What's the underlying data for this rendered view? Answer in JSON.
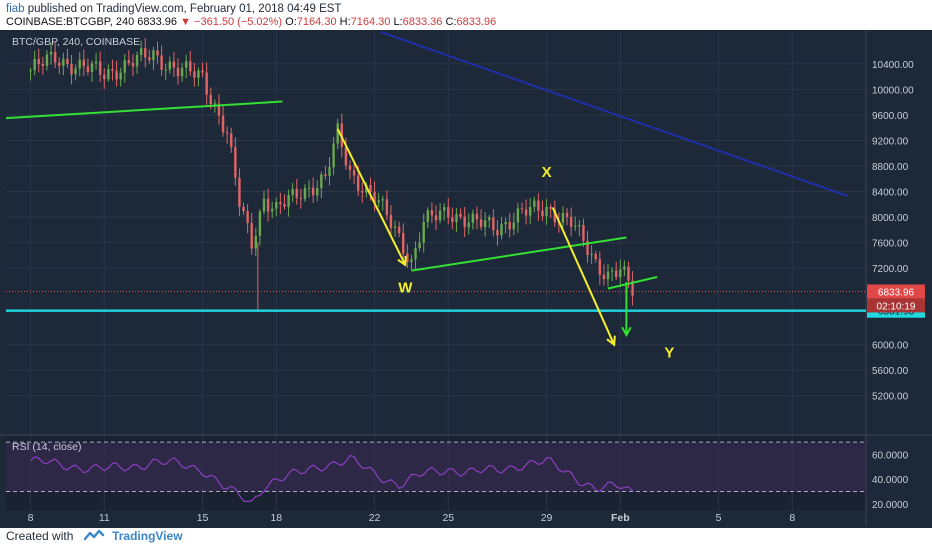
{
  "header": {
    "user": "fiab",
    "published_text": "published on TradingView.com, February 01, 2018 04:49 EST",
    "symbol": "COINBASE:BTCGBP, 240",
    "last": "6833.96",
    "change": "−361.50 (−5.02%)",
    "open_label": "O:",
    "open": "7164.30",
    "high_label": "H:",
    "high": "7164.30",
    "low_label": "L:",
    "low": "6833.36",
    "close_label": "C:",
    "close": "6833.96"
  },
  "footer": {
    "created_with": "Created with",
    "brand": "TradingView"
  },
  "colors": {
    "panel_bg": "#1d2838",
    "grid": "#2b3647",
    "up": "#6aa84f",
    "down": "#e06666",
    "trend_green": "#33e033",
    "trend_yellow": "#f5ee2a",
    "trend_blue": "#1f2fa8",
    "support_cyan": "#20d8e0",
    "price_badge": "#e04848",
    "rsi_line": "#8a3fc0",
    "rsi_band": "#3a2d55",
    "text": "#c8ced8"
  },
  "chart_data": {
    "type": "candlestick",
    "title": "BTC/GBP, 240, COINBASE",
    "x_tick_labels": [
      "8",
      "11",
      "15",
      "18",
      "22",
      "25",
      "29",
      "Feb",
      "5",
      "8"
    ],
    "x_ticks": [
      "2018-01-08",
      "2018-01-11",
      "2018-01-15",
      "2018-01-18",
      "2018-01-22",
      "2018-01-25",
      "2018-01-29",
      "2018-02-01",
      "2018-02-05",
      "2018-02-08"
    ],
    "xlim": [
      "2018-01-07",
      "2018-02-11"
    ],
    "y_ticks": [
      "10400.00",
      "10000.00",
      "9600.00",
      "9200.00",
      "8800.00",
      "8400.00",
      "8000.00",
      "7600.00",
      "7200.00",
      "6000.00",
      "5600.00",
      "5200.00"
    ],
    "ylim": [
      4600,
      10900
    ],
    "price_series": [
      [
        "2018-01-08",
        10300
      ],
      [
        "2018-01-09",
        10500
      ],
      [
        "2018-01-10",
        10350
      ],
      [
        "2018-01-11",
        10250
      ],
      [
        "2018-01-12",
        10400
      ],
      [
        "2018-01-13",
        10550
      ],
      [
        "2018-01-14",
        10300
      ],
      [
        "2018-01-15",
        10200
      ],
      [
        "2018-01-16",
        9300
      ],
      [
        "2018-01-16T12",
        8200
      ],
      [
        "2018-01-17",
        7600
      ],
      [
        "2018-01-17T12",
        8300
      ],
      [
        "2018-01-18",
        8100
      ],
      [
        "2018-01-19",
        8400
      ],
      [
        "2018-01-20",
        8600
      ],
      [
        "2018-01-20T12",
        9300
      ],
      [
        "2018-01-21",
        8700
      ],
      [
        "2018-01-22",
        8300
      ],
      [
        "2018-01-23",
        7700
      ],
      [
        "2018-01-23T12",
        7300
      ],
      [
        "2018-01-24",
        7900
      ],
      [
        "2018-01-25",
        8100
      ],
      [
        "2018-01-26",
        7900
      ],
      [
        "2018-01-27",
        7850
      ],
      [
        "2018-01-28",
        8050
      ],
      [
        "2018-01-29",
        8150
      ],
      [
        "2018-01-30",
        7900
      ],
      [
        "2018-01-31",
        7300
      ],
      [
        "2018-01-31T12",
        7100
      ],
      [
        "2018-02-01",
        7150
      ],
      [
        "2018-02-01T12",
        6834
      ]
    ],
    "price_labels": [
      {
        "value": 6833.96,
        "text": "6833.96",
        "color": "#e04848"
      },
      {
        "value": 6531.98,
        "text": "6531.98",
        "color": "#20d8e0"
      }
    ],
    "countdown": "02:10:19",
    "wave_labels": [
      {
        "text": "W",
        "x": "2018-01-23T06",
        "y": 6820
      },
      {
        "text": "X",
        "x": "2018-01-29",
        "y": 8630
      },
      {
        "text": "Y",
        "x": "2018-02-03",
        "y": 5800
      }
    ],
    "drawings": [
      {
        "name": "green-trendline-1",
        "color": "#33e033",
        "points": [
          [
            "2018-01-07",
            9550
          ],
          [
            "2018-01-18T06",
            9810
          ]
        ]
      },
      {
        "name": "green-trendline-2",
        "color": "#33e033",
        "points": [
          [
            "2018-01-23T12",
            7160
          ],
          [
            "2018-02-01T06",
            7680
          ]
        ]
      },
      {
        "name": "green-trendline-3",
        "color": "#33e033",
        "points": [
          [
            "2018-01-31T12",
            6880
          ],
          [
            "2018-02-02T12",
            7060
          ]
        ]
      },
      {
        "name": "blue-trendline",
        "color": "#1f2fa8",
        "points": [
          [
            "2018-01-22T06",
            10900
          ],
          [
            "2018-02-10T06",
            8330
          ]
        ]
      },
      {
        "name": "cyan-support-line",
        "color": "#20d8e0",
        "points": [
          [
            "2018-01-07",
            6532
          ],
          [
            "2018-02-11",
            6532
          ]
        ]
      }
    ],
    "arrows": [
      {
        "name": "yellow-arrow-1",
        "color": "#f5ee2a",
        "from": [
          "2018-01-20T12",
          9380
        ],
        "to": [
          "2018-01-23T06",
          7250
        ]
      },
      {
        "name": "yellow-arrow-2",
        "color": "#f5ee2a",
        "from": [
          "2018-01-29T06",
          8150
        ],
        "to": [
          "2018-01-31T18",
          6000
        ]
      },
      {
        "name": "green-arrow",
        "color": "#33e033",
        "from": [
          "2018-02-01T06",
          6980
        ],
        "to": [
          "2018-02-01T06",
          6150
        ]
      }
    ],
    "rsi": {
      "label": "RSI (14, close)",
      "y_ticks": [
        "60.0000",
        "40.0000",
        "20.0000"
      ],
      "ylim": [
        15,
        75
      ],
      "band": [
        30,
        70
      ],
      "series": [
        [
          "2018-01-08",
          55
        ],
        [
          "2018-01-09",
          52
        ],
        [
          "2018-01-10",
          50
        ],
        [
          "2018-01-11",
          48
        ],
        [
          "2018-01-12",
          50
        ],
        [
          "2018-01-13",
          54
        ],
        [
          "2018-01-14",
          52
        ],
        [
          "2018-01-15",
          48
        ],
        [
          "2018-01-16",
          32
        ],
        [
          "2018-01-17",
          20
        ],
        [
          "2018-01-17T12",
          35
        ],
        [
          "2018-01-18",
          40
        ],
        [
          "2018-01-19",
          45
        ],
        [
          "2018-01-20",
          52
        ],
        [
          "2018-01-21",
          56
        ],
        [
          "2018-01-22",
          44
        ],
        [
          "2018-01-23",
          36
        ],
        [
          "2018-01-24",
          44
        ],
        [
          "2018-01-25",
          48
        ],
        [
          "2018-01-26",
          46
        ],
        [
          "2018-01-27",
          47
        ],
        [
          "2018-01-28",
          52
        ],
        [
          "2018-01-29",
          54
        ],
        [
          "2018-01-30",
          44
        ],
        [
          "2018-01-31",
          32
        ],
        [
          "2018-02-01",
          34
        ],
        [
          "2018-02-01T12",
          30
        ]
      ]
    }
  }
}
